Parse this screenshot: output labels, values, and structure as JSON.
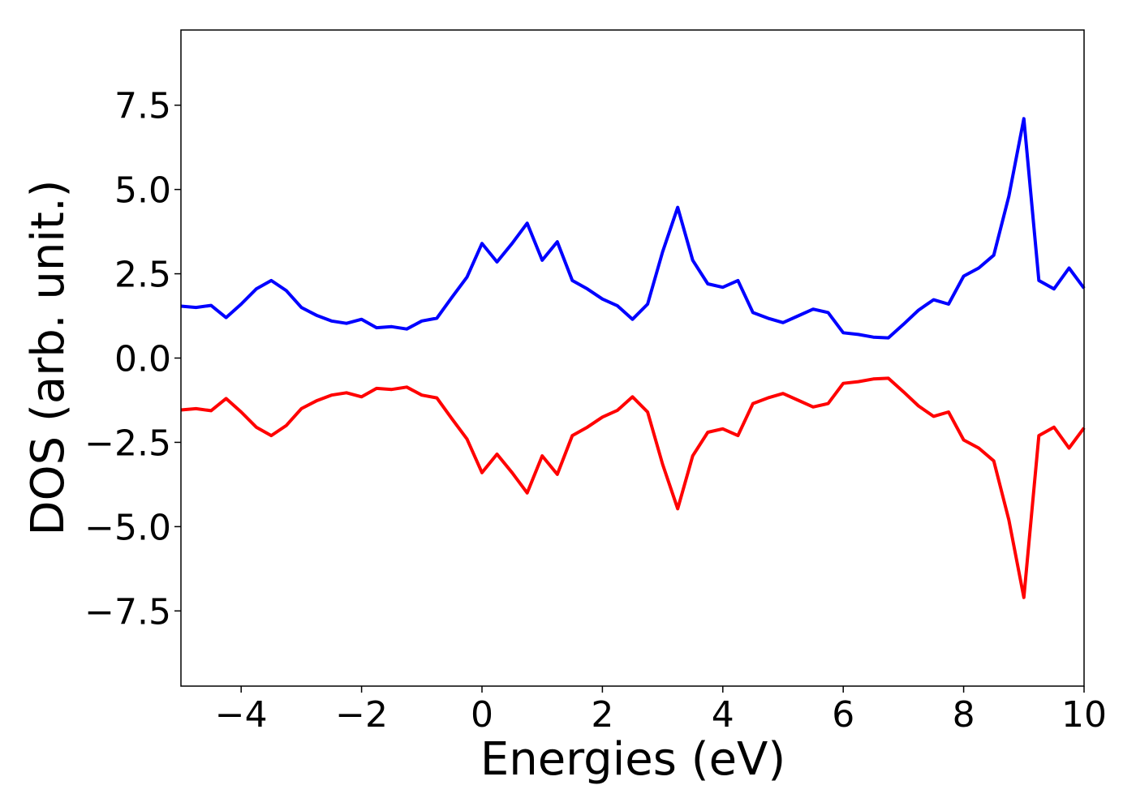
{
  "chart_data": {
    "type": "line",
    "xlabel": "Energies (eV)",
    "ylabel": "DOS (arb. unit.)",
    "x": [
      -5,
      -4.75,
      -4.5,
      -4.25,
      -4,
      -3.75,
      -3.5,
      -3.25,
      -3,
      -2.75,
      -2.5,
      -2.25,
      -2,
      -1.75,
      -1.5,
      -1.25,
      -1,
      -0.75,
      -0.5,
      -0.25,
      0,
      0.25,
      0.5,
      0.75,
      1,
      1.25,
      1.5,
      1.75,
      2,
      2.25,
      2.5,
      2.75,
      3,
      3.25,
      3.5,
      3.75,
      4,
      4.25,
      4.5,
      4.75,
      5,
      5.25,
      5.5,
      5.75,
      6,
      6.25,
      6.5,
      6.75,
      7,
      7.25,
      7.5,
      7.75,
      8,
      8.25,
      8.5,
      8.75,
      9,
      9.25,
      9.5,
      9.75,
      10
    ],
    "series": [
      {
        "color": "#0000ff",
        "values": [
          1.54,
          1.5,
          1.56,
          1.2,
          1.6,
          2.05,
          2.3,
          2.0,
          1.5,
          1.27,
          1.1,
          1.03,
          1.15,
          0.9,
          0.93,
          0.86,
          1.1,
          1.18,
          1.8,
          2.4,
          3.4,
          2.85,
          3.4,
          4.0,
          2.9,
          3.45,
          2.3,
          2.05,
          1.75,
          1.55,
          1.15,
          1.6,
          3.15,
          4.47,
          2.9,
          2.2,
          2.1,
          2.3,
          1.35,
          1.18,
          1.05,
          1.25,
          1.45,
          1.35,
          0.75,
          0.7,
          0.62,
          0.6,
          1.0,
          1.42,
          1.73,
          1.6,
          2.43,
          2.67,
          3.05,
          4.8,
          7.1,
          2.3,
          2.05,
          2.67,
          2.07
        ]
      },
      {
        "color": "#ff0000",
        "values": [
          -1.54,
          -1.5,
          -1.56,
          -1.2,
          -1.6,
          -2.05,
          -2.3,
          -2.0,
          -1.5,
          -1.27,
          -1.1,
          -1.03,
          -1.15,
          -0.9,
          -0.93,
          -0.86,
          -1.1,
          -1.18,
          -1.8,
          -2.4,
          -3.4,
          -2.85,
          -3.4,
          -4.0,
          -2.9,
          -3.45,
          -2.3,
          -2.05,
          -1.75,
          -1.55,
          -1.15,
          -1.6,
          -3.15,
          -4.47,
          -2.9,
          -2.2,
          -2.1,
          -2.3,
          -1.35,
          -1.18,
          -1.05,
          -1.25,
          -1.45,
          -1.35,
          -0.75,
          -0.7,
          -0.62,
          -0.6,
          -1.0,
          -1.42,
          -1.73,
          -1.6,
          -2.43,
          -2.67,
          -3.05,
          -4.8,
          -7.1,
          -2.3,
          -2.05,
          -2.67,
          -2.07
        ]
      }
    ],
    "xlim": [
      -5,
      10
    ],
    "xticks": [
      {
        "value": -4,
        "label": "−4"
      },
      {
        "value": -2,
        "label": "−2"
      },
      0,
      2,
      4,
      6,
      8,
      10
    ],
    "ylim": [
      -9.73,
      9.73
    ],
    "yticks": [
      {
        "value": -7.5,
        "label": "−7.5"
      },
      {
        "value": -5,
        "label": "−5.0"
      },
      {
        "value": -2.5,
        "label": "−2.5"
      },
      {
        "value": 0,
        "label": "0.0"
      },
      2.5,
      {
        "value": 5,
        "label": "5.0"
      },
      7.5
    ],
    "grid": false
  }
}
